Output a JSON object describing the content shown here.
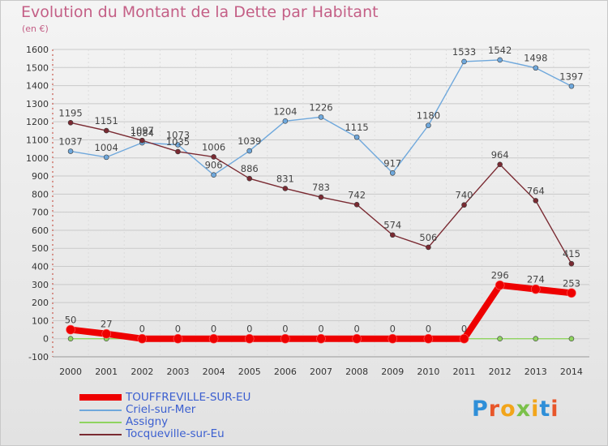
{
  "header": {
    "title": "Evolution du Montant de la Dette par Habitant",
    "unit": "(en €)"
  },
  "logo": {
    "text": "Proxiti",
    "letter_colors": [
      "#2f8fd8",
      "#e8562a",
      "#f2a51b",
      "#7bc14a",
      "#f2a51b",
      "#2f8fd8",
      "#e8562a"
    ]
  },
  "chart_data": {
    "type": "line",
    "title": "Evolution du Montant de la Dette par Habitant",
    "ylabel": "(en €)",
    "xlabel": "",
    "x": [
      "2000",
      "2001",
      "2002",
      "2003",
      "2004",
      "2005",
      "2006",
      "2007",
      "2008",
      "2009",
      "2010",
      "2011",
      "2012",
      "2013",
      "2014"
    ],
    "ylim": [
      -100,
      1600
    ],
    "yticks": [
      -100,
      0,
      100,
      200,
      300,
      400,
      500,
      600,
      700,
      800,
      900,
      1000,
      1100,
      1200,
      1300,
      1400,
      1500,
      1600
    ],
    "grid": true,
    "legend_position": "bottom-left",
    "series": [
      {
        "name": "TOUFFREVILLE-SUR-EU",
        "color": "#ee0000",
        "values": [
          50,
          27,
          0,
          0,
          0,
          0,
          0,
          0,
          0,
          0,
          0,
          0,
          296,
          274,
          253
        ]
      },
      {
        "name": "Criel-sur-Mer",
        "color": "#6fa8dc",
        "values": [
          1037,
          1004,
          1084,
          1073,
          906,
          1039,
          1204,
          1226,
          1115,
          917,
          1180,
          1533,
          1542,
          1498,
          1397
        ]
      },
      {
        "name": "Assigny",
        "color": "#8fd460",
        "values": [
          0,
          0,
          0,
          0,
          0,
          0,
          0,
          0,
          0,
          0,
          0,
          0,
          0,
          0,
          0
        ]
      },
      {
        "name": "Tocqueville-sur-Eu",
        "color": "#7a2a32",
        "values": [
          1195,
          1151,
          1097,
          1035,
          1006,
          886,
          831,
          783,
          742,
          574,
          506,
          740,
          964,
          764,
          415
        ]
      }
    ]
  }
}
